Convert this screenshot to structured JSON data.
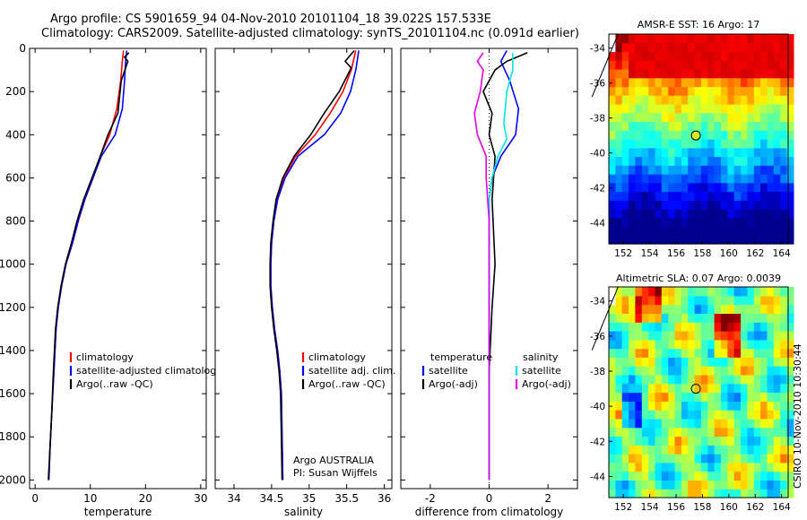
{
  "header": {
    "title_line1": "Argo profile: CS 5901659_94 04-Nov-2010 20101104_18 39.022S 157.533E",
    "title_line2": "Climatology: CARS2009. Satellite-adjusted climatology: synTS_20101104.nc (0.091d earlier)"
  },
  "colors": {
    "climatology": "#ff0000",
    "satellite": "#0000ff",
    "argo": "#000000",
    "salinity_satellite": "#00e5e5",
    "salinity_argo": "#e600e6",
    "marker": "#d7ea2a"
  },
  "chart_data": [
    {
      "type": "line",
      "id": "temperature",
      "xlabel": "temperature",
      "ylabel": "",
      "xlim": [
        -1,
        31
      ],
      "ylim": [
        2040,
        0
      ],
      "xticks": [
        0,
        10,
        20,
        30
      ],
      "yticks": [
        0,
        200,
        400,
        600,
        800,
        1000,
        1200,
        1400,
        1600,
        1800,
        2000
      ],
      "legend": [
        "climatology",
        "satellite-adjusted climatology",
        "Argo(..raw -QC)"
      ],
      "annotation": [],
      "series": [
        {
          "name": "climatology",
          "color": "#ff0000",
          "points": [
            [
              16.0,
              10
            ],
            [
              15.8,
              60
            ],
            [
              15.5,
              150
            ],
            [
              14.8,
              280
            ],
            [
              13.5,
              400
            ],
            [
              11.8,
              500
            ],
            [
              10.5,
              600
            ],
            [
              9.0,
              700
            ],
            [
              7.8,
              800
            ],
            [
              6.8,
              900
            ],
            [
              5.6,
              1000
            ],
            [
              4.8,
              1100
            ],
            [
              4.2,
              1200
            ],
            [
              3.8,
              1300
            ],
            [
              3.4,
              1500
            ],
            [
              3.0,
              1700
            ],
            [
              2.7,
              1850
            ],
            [
              2.5,
              2000
            ]
          ]
        },
        {
          "name": "satellite-adjusted climatology",
          "color": "#0000ff",
          "points": [
            [
              16.6,
              10
            ],
            [
              16.4,
              60
            ],
            [
              16.2,
              150
            ],
            [
              15.8,
              280
            ],
            [
              14.5,
              400
            ],
            [
              12.0,
              500
            ],
            [
              10.5,
              600
            ],
            [
              9.0,
              700
            ],
            [
              7.8,
              800
            ],
            [
              6.8,
              900
            ],
            [
              5.6,
              1000
            ],
            [
              4.8,
              1100
            ],
            [
              4.2,
              1200
            ],
            [
              3.8,
              1300
            ],
            [
              3.4,
              1500
            ],
            [
              3.0,
              1700
            ],
            [
              2.7,
              1850
            ],
            [
              2.5,
              2000
            ]
          ]
        },
        {
          "name": "Argo(..raw -QC)",
          "color": "#000000",
          "points": [
            [
              17.0,
              20
            ],
            [
              16.2,
              40
            ],
            [
              16.8,
              60
            ],
            [
              15.6,
              150
            ],
            [
              15.0,
              300
            ],
            [
              13.2,
              400
            ],
            [
              11.8,
              500
            ],
            [
              10.3,
              600
            ],
            [
              8.8,
              700
            ],
            [
              7.6,
              800
            ],
            [
              6.6,
              900
            ],
            [
              5.5,
              1000
            ],
            [
              4.7,
              1100
            ],
            [
              4.1,
              1200
            ],
            [
              3.7,
              1300
            ],
            [
              3.3,
              1500
            ],
            [
              3.0,
              1700
            ],
            [
              2.7,
              1850
            ],
            [
              2.4,
              2000
            ]
          ]
        }
      ]
    },
    {
      "type": "line",
      "id": "salinity",
      "xlabel": "salinity",
      "ylabel": "",
      "xlim": [
        33.75,
        36.1
      ],
      "ylim": [
        2040,
        0
      ],
      "xticks": [
        34,
        34.5,
        35,
        35.5,
        36
      ],
      "yticks": [],
      "legend": [
        "climatology",
        "satellite adj. clim.",
        "Argo(..raw -QC)"
      ],
      "annotation": [
        "Argo AUSTRALIA",
        "PI: Susan Wijffels"
      ],
      "series": [
        {
          "name": "climatology",
          "color": "#ff0000",
          "points": [
            [
              35.62,
              10
            ],
            [
              35.56,
              100
            ],
            [
              35.45,
              200
            ],
            [
              35.28,
              300
            ],
            [
              35.08,
              400
            ],
            [
              34.82,
              500
            ],
            [
              34.66,
              600
            ],
            [
              34.58,
              700
            ],
            [
              34.53,
              800
            ],
            [
              34.5,
              900
            ],
            [
              34.49,
              1000
            ],
            [
              34.49,
              1100
            ],
            [
              34.51,
              1200
            ],
            [
              34.54,
              1300
            ],
            [
              34.58,
              1400
            ],
            [
              34.61,
              1500
            ],
            [
              34.63,
              1600
            ],
            [
              34.64,
              1800
            ],
            [
              34.65,
              2000
            ]
          ]
        },
        {
          "name": "satellite adj. clim.",
          "color": "#0000ff",
          "points": [
            [
              35.66,
              10
            ],
            [
              35.62,
              100
            ],
            [
              35.55,
              200
            ],
            [
              35.42,
              300
            ],
            [
              35.2,
              400
            ],
            [
              34.85,
              500
            ],
            [
              34.68,
              600
            ],
            [
              34.58,
              700
            ],
            [
              34.53,
              800
            ],
            [
              34.5,
              900
            ],
            [
              34.49,
              1000
            ],
            [
              34.49,
              1100
            ],
            [
              34.51,
              1200
            ],
            [
              34.54,
              1300
            ],
            [
              34.58,
              1400
            ],
            [
              34.61,
              1500
            ],
            [
              34.63,
              1600
            ],
            [
              34.64,
              1800
            ],
            [
              34.65,
              2000
            ]
          ]
        },
        {
          "name": "Argo(..raw -QC)",
          "color": "#000000",
          "points": [
            [
              35.6,
              10
            ],
            [
              35.48,
              60
            ],
            [
              35.56,
              90
            ],
            [
              35.4,
              200
            ],
            [
              35.2,
              300
            ],
            [
              35.02,
              400
            ],
            [
              34.8,
              500
            ],
            [
              34.65,
              600
            ],
            [
              34.56,
              700
            ],
            [
              34.52,
              800
            ],
            [
              34.49,
              900
            ],
            [
              34.48,
              1000
            ],
            [
              34.48,
              1100
            ],
            [
              34.5,
              1200
            ],
            [
              34.53,
              1300
            ],
            [
              34.57,
              1400
            ],
            [
              34.6,
              1500
            ],
            [
              34.62,
              1600
            ],
            [
              34.63,
              1800
            ],
            [
              34.64,
              2000
            ]
          ]
        }
      ]
    },
    {
      "type": "line",
      "id": "difference",
      "xlabel": "difference from climatology",
      "ylabel": "",
      "xlim": [
        -3,
        3
      ],
      "ylim": [
        2040,
        0
      ],
      "xticks": [
        -2,
        0,
        2
      ],
      "yticks": [],
      "legend": [
        "temperature",
        "satellite",
        "Argo(-adj)",
        "salinity",
        "satellite",
        "Argo(-adj)"
      ],
      "annotation": [],
      "series": [
        {
          "name": "temperature satellite",
          "color": "#0000ff",
          "points": [
            [
              0.6,
              10
            ],
            [
              0.4,
              60
            ],
            [
              0.7,
              150
            ],
            [
              1.0,
              280
            ],
            [
              0.9,
              400
            ],
            [
              0.4,
              500
            ],
            [
              0.1,
              600
            ],
            [
              0.0,
              700
            ],
            [
              0.0,
              1000
            ],
            [
              0.0,
              2000
            ]
          ]
        },
        {
          "name": "temperature Argo(-adj)",
          "color": "#000000",
          "points": [
            [
              1.3,
              20
            ],
            [
              0.6,
              60
            ],
            [
              0.2,
              100
            ],
            [
              -0.2,
              200
            ],
            [
              0.1,
              300
            ],
            [
              0.0,
              400
            ],
            [
              0.2,
              500
            ],
            [
              0.1,
              700
            ],
            [
              0.2,
              1000
            ],
            [
              0.1,
              1200
            ],
            [
              0.0,
              1500
            ],
            [
              0.0,
              2000
            ]
          ]
        },
        {
          "name": "salinity satellite",
          "color": "#00e5e5",
          "points": [
            [
              0.8,
              20
            ],
            [
              0.8,
              100
            ],
            [
              0.6,
              200
            ],
            [
              0.5,
              350
            ],
            [
              0.6,
              420
            ],
            [
              0.3,
              500
            ],
            [
              0.1,
              600
            ],
            [
              0.0,
              700
            ],
            [
              0.0,
              1000
            ],
            [
              0.0,
              2000
            ]
          ]
        },
        {
          "name": "salinity Argo(-adj)",
          "color": "#e600e6",
          "points": [
            [
              -0.2,
              20
            ],
            [
              -0.4,
              60
            ],
            [
              -0.2,
              100
            ],
            [
              -0.3,
              200
            ],
            [
              -0.5,
              300
            ],
            [
              -0.4,
              400
            ],
            [
              -0.1,
              500
            ],
            [
              -0.1,
              600
            ],
            [
              0.0,
              800
            ],
            [
              0.0,
              1000
            ],
            [
              0.0,
              1200
            ],
            [
              0.0,
              2000
            ]
          ]
        }
      ]
    },
    {
      "type": "heatmap",
      "id": "sst",
      "title": "AMSR-E SST: 16 Argo: 17",
      "xlim": [
        150.9,
        164.5
      ],
      "ylim": [
        -45.2,
        -33.2
      ],
      "xticks": [
        152,
        154,
        156,
        158,
        160,
        162,
        164
      ],
      "yticks": [
        -34,
        -36,
        -38,
        -40,
        -42,
        -44
      ],
      "marker": {
        "lon": 157.5,
        "lat": -39.0
      }
    },
    {
      "type": "heatmap",
      "id": "sla",
      "title": "Altimetric SLA: 0.07 Argo: 0.0039",
      "xlim": [
        150.9,
        164.5
      ],
      "ylim": [
        -45.2,
        -33.2
      ],
      "xticks": [
        152,
        154,
        156,
        158,
        160,
        162,
        164
      ],
      "yticks": [
        -34,
        -36,
        -38,
        -40,
        -42,
        -44
      ],
      "marker": {
        "lon": 157.5,
        "lat": -39.0
      }
    }
  ],
  "footer": {
    "credit": "CSIRO 10-Nov-2010 10:30:44"
  }
}
